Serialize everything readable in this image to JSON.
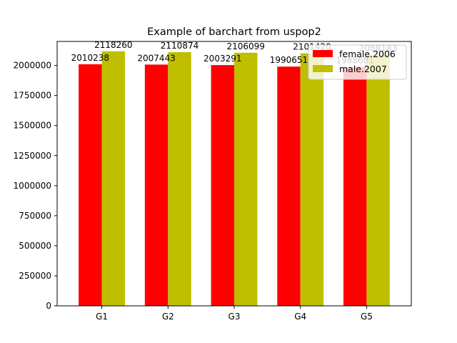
{
  "chart_data": {
    "type": "bar",
    "title": "Example of barchart from uspop2",
    "xlabel": "",
    "ylabel": "",
    "categories": [
      "G1",
      "G2",
      "G3",
      "G4",
      "G5"
    ],
    "series": [
      {
        "name": "female.2006",
        "color": "#ff0000",
        "values": [
          2010238,
          2007443,
          2003291,
          1990651,
          1988681
        ]
      },
      {
        "name": "male.2007",
        "color": "#bfbf00",
        "values": [
          2118260,
          2110874,
          2106099,
          2101420,
          2088183
        ]
      }
    ],
    "ylim": [
      0,
      2200000
    ],
    "yticks": [
      0,
      250000,
      500000,
      750000,
      1000000,
      1250000,
      1500000,
      1750000,
      2000000
    ],
    "grid": false,
    "legend_position": "top-right"
  }
}
